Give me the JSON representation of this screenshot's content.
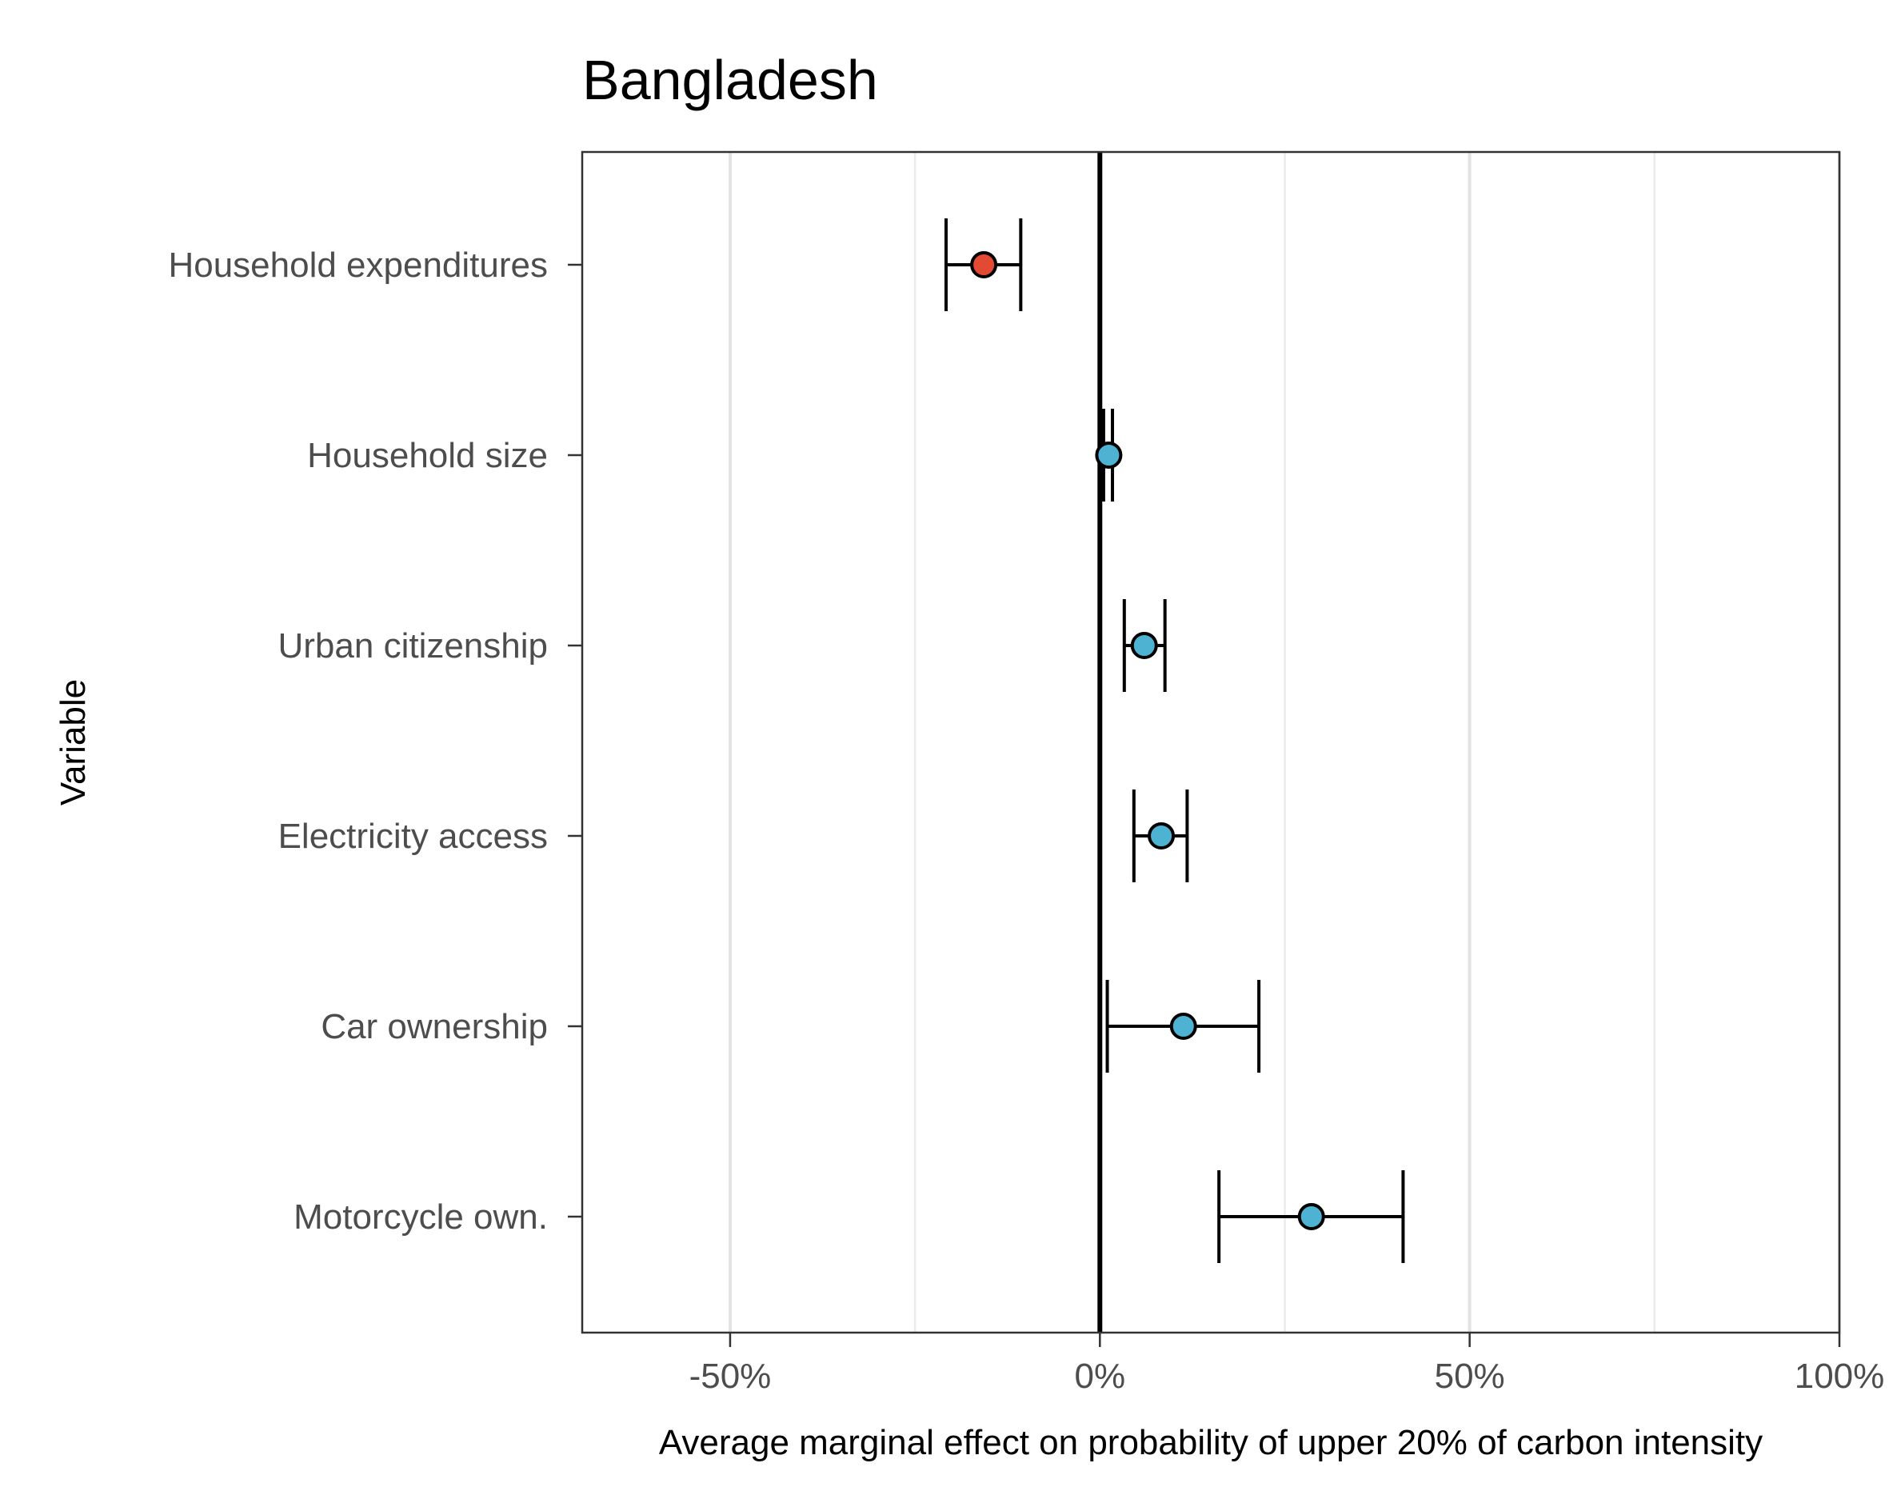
{
  "chart_data": {
    "type": "scatter",
    "subtype": "coefficient-plot",
    "title": "Bangladesh",
    "xlabel": "Average marginal effect on probability of upper 20% of carbon intensity",
    "ylabel": "Variable",
    "xlim": [
      -0.7,
      1.0
    ],
    "x_ticks": [
      {
        "value": -0.5,
        "label": "-50%"
      },
      {
        "value": 0.0,
        "label": "0%"
      },
      {
        "value": 0.5,
        "label": "50%"
      },
      {
        "value": 1.0,
        "label": "100%"
      }
    ],
    "minor_gridlines": [
      -0.25,
      0.25,
      0.75
    ],
    "reference_line": 0,
    "grid": "vertical",
    "categories": [
      "Household expenditures",
      "Household size",
      "Urban citizenship",
      "Electricity access",
      "Car ownership",
      "Motorcycle own."
    ],
    "estimates": [
      -0.157,
      0.012,
      0.06,
      0.083,
      0.113,
      0.286
    ],
    "ci_low": [
      -0.208,
      0.005,
      0.033,
      0.046,
      0.01,
      0.161
    ],
    "ci_high": [
      -0.107,
      0.017,
      0.088,
      0.118,
      0.215,
      0.41
    ],
    "colors": [
      "#e34a33",
      "#4eb3d3",
      "#4eb3d3",
      "#4eb3d3",
      "#4eb3d3",
      "#4eb3d3"
    ]
  }
}
